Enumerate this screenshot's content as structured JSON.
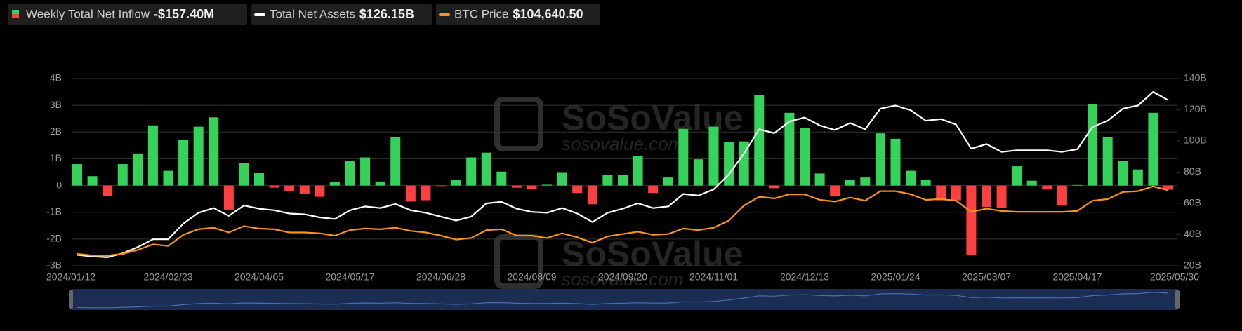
{
  "chart_data": {
    "type": "bar",
    "watermark": [
      "SoSoValue",
      "sosovalue.com"
    ],
    "categories": [
      "2024/01/12",
      null,
      null,
      null,
      null,
      null,
      "2024/02/23",
      null,
      null,
      null,
      null,
      null,
      "2024/04/05",
      null,
      null,
      null,
      null,
      null,
      "2024/05/17",
      null,
      null,
      null,
      null,
      null,
      "2024/06/28",
      null,
      null,
      null,
      null,
      null,
      "2024/08/09",
      null,
      null,
      null,
      null,
      null,
      "2024/09/20",
      null,
      null,
      null,
      null,
      null,
      "2024/11/01",
      null,
      null,
      null,
      null,
      null,
      "2024/12/13",
      null,
      null,
      null,
      null,
      null,
      "2025/01/24",
      null,
      null,
      null,
      null,
      null,
      "2025/03/07",
      null,
      null,
      null,
      null,
      null,
      "2025/04/17",
      null,
      null,
      null,
      null,
      null,
      "2025/05/30"
    ],
    "series": [
      {
        "name": "Weekly Total Net Inflow",
        "latest_label": "-$157.40M",
        "type": "bar",
        "axis": "y",
        "color": "#35d35a",
        "negative_color": "#ff4040",
        "values": [
          0.8,
          0.35,
          -0.4,
          0.8,
          1.2,
          2.25,
          0.55,
          1.72,
          2.2,
          2.55,
          -0.9,
          0.85,
          0.48,
          -0.08,
          -0.2,
          -0.3,
          -0.42,
          0.12,
          0.93,
          1.05,
          0.15,
          1.8,
          -0.6,
          -0.55,
          -0.02,
          0.22,
          1.05,
          1.23,
          0.52,
          -0.08,
          -0.15,
          0.03,
          0.5,
          -0.28,
          -0.7,
          0.4,
          0.4,
          1.1,
          -0.28,
          0.3,
          2.12,
          0.98,
          2.2,
          1.63,
          1.65,
          3.38,
          -0.1,
          2.72,
          2.15,
          0.45,
          -0.38,
          0.22,
          0.3,
          1.95,
          1.75,
          0.55,
          0.2,
          -0.55,
          -0.55,
          -2.6,
          -0.8,
          -0.85,
          0.72,
          0.18,
          -0.15,
          -0.75,
          0.02,
          3.05,
          1.8,
          0.92,
          0.6,
          2.72,
          -0.1574
        ]
      },
      {
        "name": "Total Net Assets",
        "latest_label": "$126.15B",
        "type": "line",
        "axis": "y2",
        "color": "#ffffff",
        "values": [
          27,
          26,
          25.5,
          28,
          32,
          37,
          37,
          47,
          54,
          57,
          52,
          58.6,
          56.6,
          55.6,
          53.5,
          53,
          51,
          50,
          55.6,
          58,
          57,
          59.6,
          55.6,
          54,
          51.5,
          49,
          51.5,
          60,
          61,
          56.6,
          54.5,
          54,
          57,
          53.5,
          48,
          54,
          56.6,
          60,
          57,
          58,
          66,
          65,
          69,
          78.5,
          92,
          107.5,
          105,
          112.5,
          115,
          110,
          107,
          111.5,
          107.5,
          120.7,
          122.7,
          119.7,
          113,
          114,
          110.5,
          95,
          98,
          93,
          94,
          94,
          94,
          93,
          94.7,
          109,
          113,
          120.7,
          122.7,
          131.4,
          126.15
        ]
      },
      {
        "name": "BTC Price",
        "latest_label": "$104,640.50",
        "type": "line",
        "axis": "y3",
        "color": "#f7931a",
        "values": [
          41800,
          40200,
          40200,
          41800,
          45700,
          51200,
          49600,
          60600,
          66100,
          67600,
          62900,
          69200,
          66800,
          66100,
          62900,
          62900,
          62100,
          59800,
          65300,
          66800,
          66100,
          67600,
          64500,
          62900,
          59800,
          55900,
          57500,
          65300,
          66100,
          59800,
          59800,
          57500,
          62100,
          58200,
          52700,
          59000,
          61400,
          63700,
          60600,
          61400,
          66800,
          65300,
          67600,
          74700,
          89600,
          98200,
          96600,
          100600,
          100600,
          95100,
          93500,
          97400,
          94300,
          103700,
          103700,
          100600,
          95100,
          95900,
          94300,
          83300,
          86400,
          84100,
          83300,
          83300,
          83300,
          83300,
          84100,
          94300,
          95900,
          102900,
          103700,
          108400,
          104640.5
        ]
      }
    ],
    "ylim": [
      -3,
      4
    ],
    "yticks": [
      {
        "value": 4,
        "label": "4B"
      },
      {
        "value": 3,
        "label": "3B"
      },
      {
        "value": 2,
        "label": "2B"
      },
      {
        "value": 1,
        "label": "1B"
      },
      0,
      {
        "value": -1,
        "label": "-1B"
      },
      {
        "value": -2,
        "label": "-2B"
      },
      {
        "value": -3,
        "label": "-3B"
      }
    ],
    "y2lim": [
      20,
      140
    ],
    "y2ticks": [
      {
        "value": 140,
        "label": "140B"
      },
      {
        "value": 120,
        "label": "120B"
      },
      {
        "value": 100,
        "label": "100B"
      },
      {
        "value": 80,
        "label": "80B"
      },
      {
        "value": 60,
        "label": "60B"
      },
      {
        "value": 40,
        "label": "40B"
      },
      {
        "value": 20,
        "label": "20B"
      }
    ],
    "y3lim": [
      30000,
      215000
    ],
    "grid": true
  }
}
